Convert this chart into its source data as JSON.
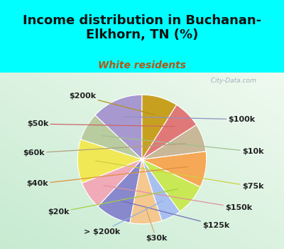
{
  "title": "Income distribution in Buchanan-\nElkhorn, TN (%)",
  "subtitle": "White residents",
  "bg_cyan": "#00ffff",
  "watermark": "  City-Data.com",
  "labels": [
    "$100k",
    "$10k",
    "$75k",
    "$150k",
    "$125k",
    "$30k",
    "> $200k",
    "$20k",
    "$40k",
    "$60k",
    "$50k",
    "$200k"
  ],
  "values": [
    13,
    7,
    11,
    7,
    9,
    8,
    5,
    8,
    9,
    7,
    7,
    9
  ],
  "colors": [
    "#a898d0",
    "#b8ccA0",
    "#f0e855",
    "#f0aab8",
    "#8888cc",
    "#f5c890",
    "#a8c0f0",
    "#c8e855",
    "#f5a855",
    "#c8b898",
    "#e07878",
    "#c8a020"
  ],
  "title_fontsize": 13,
  "subtitle_fontsize": 10,
  "subtitle_color": "#b05818",
  "label_fontsize": 8,
  "label_color": "#222222",
  "line_color_map": {
    "$100k": "#9090c0",
    "$10k": "#a0c090",
    "$75k": "#d0d040",
    "$150k": "#e090a0",
    "$125k": "#7070bb",
    "$30k": "#d0a870",
    "> $200k": "#90b0e0",
    "$20k": "#a0d040",
    "$40k": "#e09040",
    "$60k": "#b0a080",
    "$50k": "#cc6666",
    "$200k": "#b09020"
  }
}
